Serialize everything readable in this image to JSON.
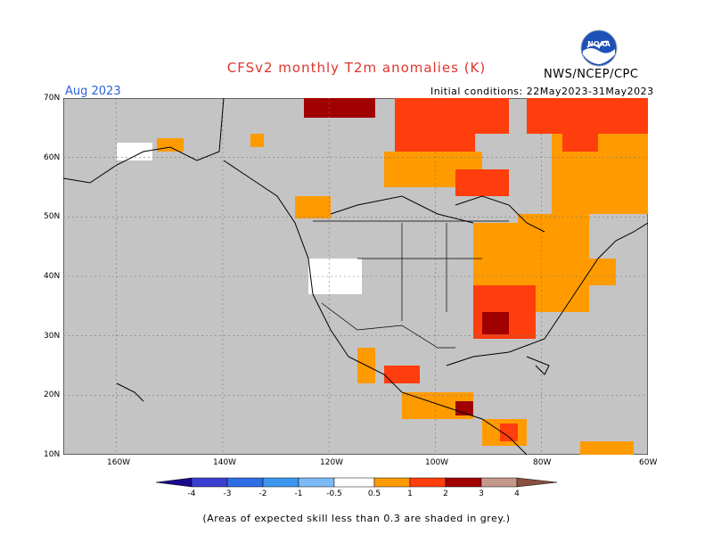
{
  "title": "CFSv2 monthly T2m anomalies (K)",
  "agency": "NWS/NCEP/CPC",
  "logo_text": "NOAA",
  "forecast_month": "Aug 2023",
  "initial_conditions": "Initial conditions: 22May2023-31May2023",
  "footnote": "(Areas of expected skill less than 0.3 are shaded in grey.)",
  "map": {
    "latitude_labels": [
      "70N",
      "60N",
      "50N",
      "40N",
      "30N",
      "20N",
      "10N"
    ],
    "longitude_labels": [
      "160W",
      "140W",
      "120W",
      "100W",
      "80W",
      "60W"
    ],
    "extent": {
      "lon_min": -170,
      "lon_max": -60,
      "lat_min": 10,
      "lat_max": 70
    },
    "grid": "dashed"
  },
  "colorbar": {
    "labels": [
      "-4",
      "-3",
      "-2",
      "-1",
      "-0.5",
      "0.5",
      "1",
      "2",
      "3",
      "4"
    ],
    "colors": [
      "#1a0b8c",
      "#3a3fd1",
      "#2e6fe6",
      "#3c96ef",
      "#7cbaf5",
      "#ffffff",
      "#ff9b00",
      "#ff3d0d",
      "#a00000",
      "#c4988a",
      "#8a5040"
    ],
    "grey_mask_color": "#c4c4c4"
  },
  "legend_skill_note_color": "#c4c4c4"
}
